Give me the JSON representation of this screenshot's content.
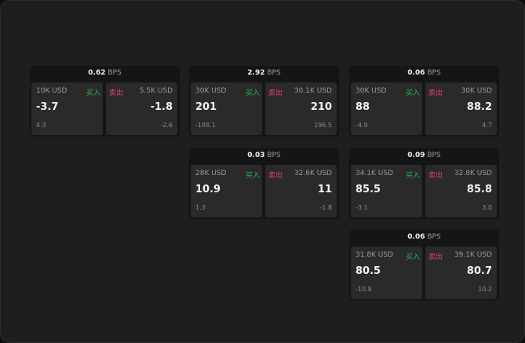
{
  "unit": "BPS",
  "buy_label": "买入",
  "sell_label": "卖出",
  "colors": {
    "buy": "#2fb35c",
    "sell": "#e0436a"
  },
  "widgets": [
    {
      "spread": "0.62",
      "bid_size": "10K USD",
      "bid": "-3.7",
      "bid_change": "4.3",
      "ask_size": "5.5K USD",
      "ask": "-1.8",
      "ask_change": "-2.6"
    },
    {
      "spread": "2.92",
      "bid_size": "30K USD",
      "bid": "201",
      "bid_change": "-188.1",
      "ask_size": "30.1K USD",
      "ask": "210",
      "ask_change": "196.5"
    },
    {
      "spread": "0.06",
      "bid_size": "30K USD",
      "bid": "88",
      "bid_change": "-4.9",
      "ask_size": "30K USD",
      "ask": "88.2",
      "ask_change": "4.7"
    },
    {
      "spread": "0.03",
      "bid_size": "28K USD",
      "bid": "10.9",
      "bid_change": "1.3",
      "ask_size": "32.6K USD",
      "ask": "11",
      "ask_change": "-1.8"
    },
    {
      "spread": "0.09",
      "bid_size": "34.1K USD",
      "bid": "85.5",
      "bid_change": "-3.1",
      "ask_size": "32.8K USD",
      "ask": "85.8",
      "ask_change": "3.0"
    },
    {
      "spread": "0.06",
      "bid_size": "31.8K USD",
      "bid": "80.5",
      "bid_change": "-10.8",
      "ask_size": "39.1K USD",
      "ask": "80.7",
      "ask_change": "10.2"
    }
  ]
}
